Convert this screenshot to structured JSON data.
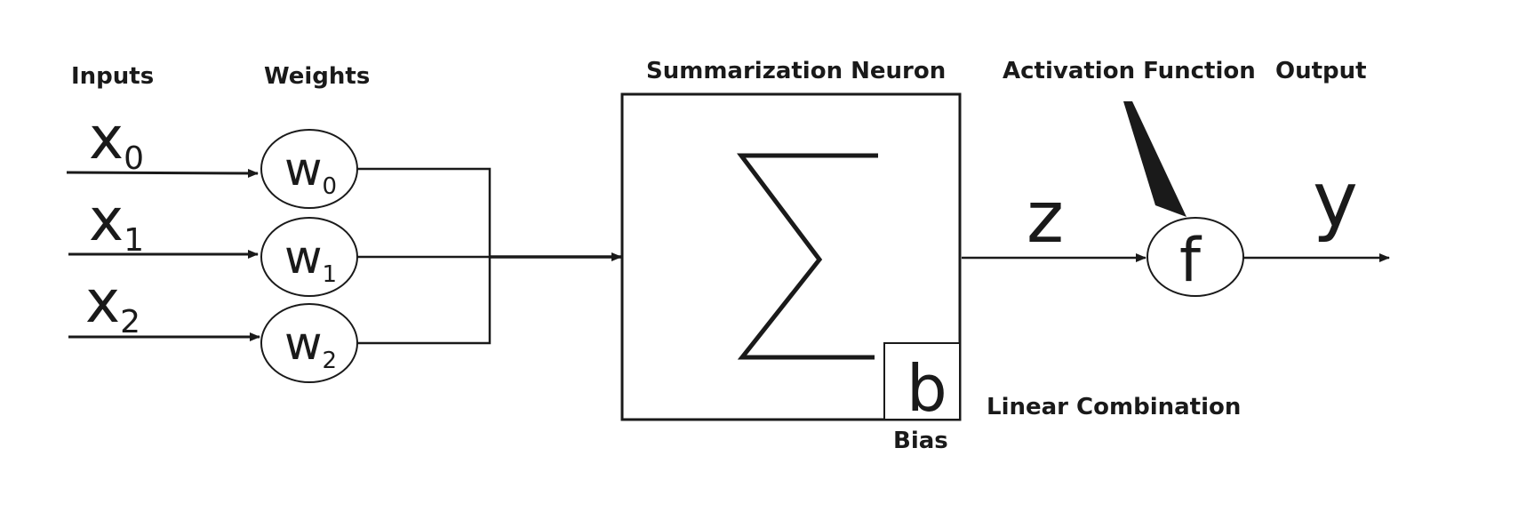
{
  "labels": {
    "inputs": "Inputs",
    "weights": "Weights",
    "summarization_neuron": "Summarization Neuron",
    "activation_function": "Activation Function",
    "output": "Output",
    "linear_combination": "Linear Combination",
    "bias": "Bias"
  },
  "inputs": [
    {
      "symbol": "x",
      "index": "0"
    },
    {
      "symbol": "x",
      "index": "1"
    },
    {
      "symbol": "x",
      "index": "2"
    }
  ],
  "weights": [
    {
      "symbol": "w",
      "index": "0"
    },
    {
      "symbol": "w",
      "index": "1"
    },
    {
      "symbol": "w",
      "index": "2"
    }
  ],
  "sum_symbol": "∑",
  "bias_symbol": "b",
  "z_symbol": "z",
  "f_symbol": "f",
  "y_symbol": "y",
  "colors": {
    "ink": "#1a1a1a",
    "background": "#ffffff"
  }
}
